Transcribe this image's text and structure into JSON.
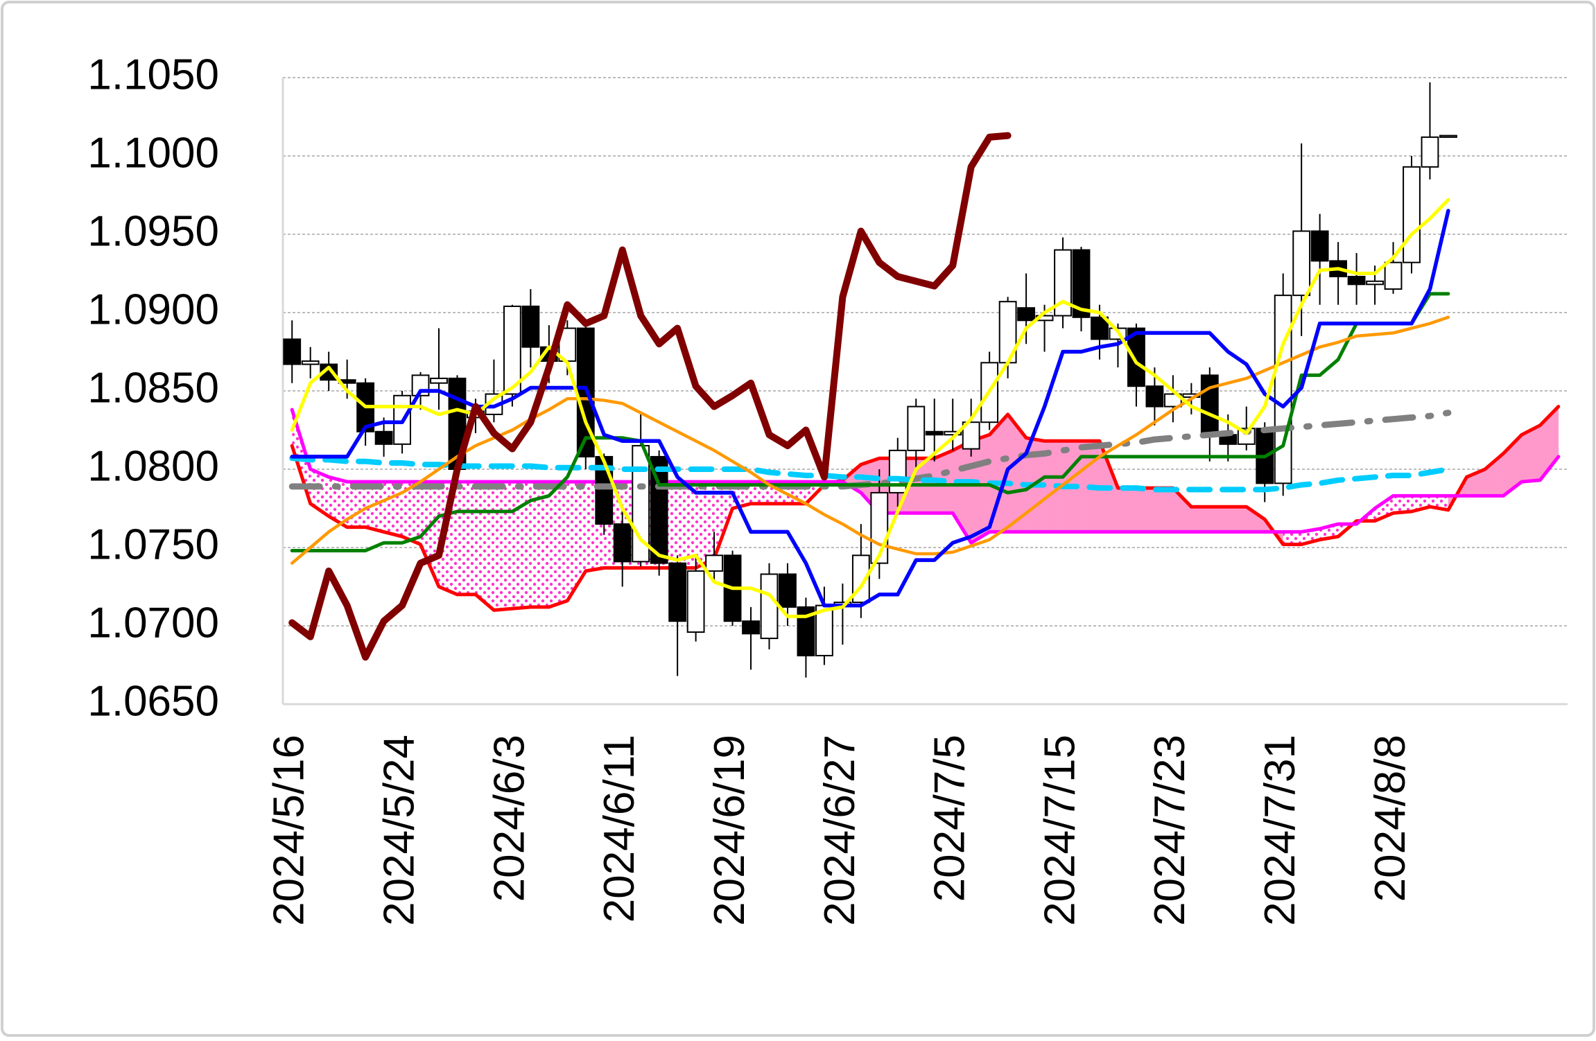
{
  "chart_data": {
    "type": "candlestick",
    "categories": [
      "2024/5/16",
      null,
      null,
      null,
      null,
      null,
      "2024/5/24",
      null,
      null,
      null,
      null,
      null,
      "2024/6/3",
      null,
      null,
      null,
      null,
      null,
      "2024/6/11",
      null,
      null,
      null,
      null,
      null,
      "2024/6/19",
      null,
      null,
      null,
      null,
      null,
      "2024/6/27",
      null,
      null,
      null,
      null,
      null,
      "2024/7/5",
      null,
      null,
      null,
      null,
      null,
      "2024/7/15",
      null,
      null,
      null,
      null,
      null,
      "2024/7/23",
      null,
      null,
      null,
      null,
      null,
      "2024/7/31",
      null,
      null,
      null,
      null,
      null,
      "2024/8/8",
      null,
      null,
      null,
      null,
      null,
      null,
      null,
      null,
      null
    ],
    "open": [
      1.0883,
      1.0867,
      1.0867,
      1.0857,
      1.0855,
      1.0824,
      1.0816,
      1.0847,
      1.0855,
      1.0858,
      1.0833,
      1.0835,
      1.0848,
      1.0904,
      1.0878,
      1.0869,
      1.089,
      1.0808,
      1.0765,
      1.0741,
      1.0808,
      1.074,
      1.0696,
      1.0735,
      1.0745,
      1.0703,
      1.0692,
      1.0733,
      1.0712,
      1.0681,
      1.0713,
      1.0715,
      1.074,
      1.0785,
      1.0812,
      1.0824,
      1.0822,
      1.0813,
      1.083,
      1.0868,
      1.0903,
      1.0895,
      1.0898,
      1.094,
      1.0897,
      1.0883,
      1.089,
      1.0853,
      1.084,
      1.0846,
      1.086,
      1.0822,
      1.0816,
      1.0826,
      1.0791,
      1.0911,
      1.0952,
      1.0933,
      1.0923,
      1.0918,
      1.0915,
      1.0932,
      1.0993,
      1.1012,
      null,
      null,
      null,
      null,
      null,
      null
    ],
    "high": [
      1.0895,
      1.0878,
      1.0875,
      1.087,
      1.0858,
      1.0833,
      1.085,
      1.0862,
      1.089,
      1.086,
      1.0845,
      1.087,
      1.0905,
      1.0915,
      1.0892,
      1.0895,
      1.0892,
      1.081,
      1.0775,
      1.0835,
      1.0812,
      1.0745,
      1.0745,
      1.076,
      1.0748,
      1.0712,
      1.074,
      1.074,
      1.0718,
      1.0725,
      1.0727,
      1.0765,
      1.08,
      1.082,
      1.0845,
      1.0845,
      1.0845,
      1.0845,
      1.0875,
      1.091,
      1.0925,
      1.0905,
      1.0948,
      1.0942,
      1.0905,
      1.0893,
      1.0893,
      1.0865,
      1.086,
      1.0855,
      1.0865,
      1.0835,
      1.084,
      1.083,
      1.0925,
      1.1008,
      1.0963,
      1.0945,
      1.0938,
      1.093,
      1.0945,
      1.1,
      1.1047,
      1.1013,
      null,
      null,
      null,
      null,
      null,
      null
    ],
    "low": [
      1.0855,
      1.0858,
      1.085,
      1.0845,
      1.0815,
      1.0808,
      1.081,
      1.0838,
      1.0838,
      1.0795,
      1.0823,
      1.083,
      1.084,
      1.0865,
      1.0855,
      1.086,
      1.08,
      1.0758,
      1.0725,
      1.0738,
      1.0732,
      1.0668,
      1.069,
      1.0728,
      1.07,
      1.0672,
      1.0685,
      1.07,
      1.0667,
      1.0675,
      1.0688,
      1.0705,
      1.073,
      1.0776,
      1.08,
      1.0805,
      1.0812,
      1.0808,
      1.0825,
      1.0858,
      1.088,
      1.0875,
      1.089,
      1.0888,
      1.087,
      1.0865,
      1.084,
      1.0828,
      1.083,
      1.0835,
      1.0805,
      1.0805,
      1.0812,
      1.0779,
      1.0783,
      1.0885,
      1.0905,
      1.0905,
      1.0905,
      1.0905,
      1.0912,
      1.0925,
      1.0985,
      1.1012,
      null,
      null,
      null,
      null,
      null,
      null
    ],
    "close": [
      1.0867,
      1.0869,
      1.0857,
      1.0855,
      1.0824,
      1.0816,
      1.0847,
      1.086,
      1.0858,
      1.08,
      1.0837,
      1.0848,
      1.0904,
      1.0878,
      1.0869,
      1.089,
      1.0808,
      1.0765,
      1.0741,
      1.0815,
      1.074,
      1.0703,
      1.0735,
      1.0745,
      1.0703,
      1.0695,
      1.0733,
      1.0712,
      1.0681,
      1.0713,
      1.0715,
      1.0745,
      1.0785,
      1.0812,
      1.084,
      1.0822,
      1.0824,
      1.083,
      1.0868,
      1.0907,
      1.0895,
      1.0898,
      1.094,
      1.0897,
      1.0883,
      1.089,
      1.0853,
      1.084,
      1.0848,
      1.0848,
      1.0822,
      1.0816,
      1.0826,
      1.0791,
      1.0911,
      1.0952,
      1.0933,
      1.0923,
      1.0918,
      1.092,
      1.0932,
      1.0993,
      1.1012,
      1.1013,
      null,
      null,
      null,
      null,
      null,
      null
    ],
    "series": [
      {
        "color": "#ff0000",
        "values": [
          1.0815,
          1.0778,
          1.077,
          1.0763,
          1.0763,
          1.076,
          1.0757,
          1.0752,
          1.0725,
          1.072,
          1.072,
          1.071,
          1.0711,
          1.0712,
          1.0712,
          1.0716,
          1.0735,
          1.0737,
          1.0737,
          1.0737,
          1.0737,
          1.0737,
          1.0737,
          1.0743,
          1.0775,
          1.0778,
          1.0778,
          1.0778,
          1.0778,
          1.079,
          1.0793,
          1.0803,
          1.0807,
          1.0807,
          1.0807,
          1.0807,
          1.0812,
          1.0818,
          1.0822,
          1.0835,
          1.082,
          1.0818,
          1.0818,
          1.0818,
          1.0818,
          1.0788,
          1.0788,
          1.0788,
          1.0788,
          1.0776,
          1.0776,
          1.0776,
          1.0776,
          1.0768,
          1.0752,
          1.0752,
          1.0755,
          1.0757,
          1.0767,
          1.0767,
          1.0772,
          1.0773,
          1.0776,
          1.0774,
          1.0795,
          1.08,
          1.081,
          1.0822,
          1.0828,
          1.084
        ]
      },
      {
        "color": "#ff00ff",
        "values": [
          1.0838,
          1.08,
          1.0795,
          1.0792,
          1.0792,
          1.0792,
          1.0792,
          1.0792,
          1.0792,
          1.0792,
          1.0792,
          1.0792,
          1.0792,
          1.0792,
          1.0792,
          1.0792,
          1.0792,
          1.0792,
          1.0792,
          1.0792,
          1.0792,
          1.0792,
          1.0792,
          1.0792,
          1.0792,
          1.0792,
          1.0792,
          1.0792,
          1.0792,
          1.0792,
          1.0792,
          1.0785,
          1.0772,
          1.0772,
          1.0772,
          1.0772,
          1.0772,
          1.0753,
          1.076,
          1.076,
          1.076,
          1.076,
          1.076,
          1.076,
          1.076,
          1.076,
          1.076,
          1.076,
          1.076,
          1.076,
          1.076,
          1.076,
          1.076,
          1.076,
          1.076,
          1.076,
          1.0762,
          1.0765,
          1.0765,
          1.0775,
          1.0783,
          1.0783,
          1.0783,
          1.0783,
          1.0783,
          1.0783,
          1.0783,
          1.0792,
          1.0793,
          1.0808
        ]
      },
      {
        "color": "#808080",
        "values": [
          1.0789,
          1.0789,
          1.0789,
          1.0789,
          1.0789,
          1.0789,
          1.0789,
          1.0789,
          1.0789,
          1.0789,
          1.0789,
          1.0789,
          1.0789,
          1.0789,
          1.0789,
          1.0789,
          1.0789,
          1.0789,
          1.0789,
          1.0789,
          1.0789,
          1.0789,
          1.0789,
          1.0789,
          1.0789,
          1.0789,
          1.0789,
          1.0789,
          1.0789,
          1.0789,
          1.0789,
          1.079,
          1.0791,
          1.0792,
          1.0794,
          1.0796,
          1.0799,
          1.0802,
          1.0805,
          1.0807,
          1.0809,
          1.081,
          1.0812,
          1.0814,
          1.0815,
          1.0816,
          1.0817,
          1.0819,
          1.082,
          1.0821,
          1.0822,
          1.0823,
          1.0824,
          1.0825,
          1.0826,
          1.0827,
          1.0828,
          1.0829,
          1.083,
          1.0831,
          1.0832,
          1.0833,
          1.0834,
          1.0836,
          null,
          null,
          null,
          null,
          null,
          null
        ]
      },
      {
        "color": "#00ccff",
        "values": [
          1.0807,
          1.0806,
          1.0806,
          1.0805,
          1.0805,
          1.0804,
          1.0804,
          1.0803,
          1.0803,
          1.0802,
          1.0802,
          1.0802,
          1.0802,
          1.0802,
          1.0801,
          1.0801,
          1.0801,
          1.0801,
          1.08,
          1.08,
          1.08,
          1.08,
          1.08,
          1.08,
          1.08,
          1.08,
          1.0798,
          1.0797,
          1.0796,
          1.0796,
          1.0795,
          1.0795,
          1.0794,
          1.0794,
          1.0793,
          1.0793,
          1.0792,
          1.0792,
          1.0791,
          1.0791,
          1.079,
          1.079,
          1.0789,
          1.0789,
          1.0788,
          1.0788,
          1.0788,
          1.0787,
          1.0787,
          1.0787,
          1.0787,
          1.0787,
          1.0787,
          1.0787,
          1.0788,
          1.079,
          1.0791,
          1.0793,
          1.0794,
          1.0795,
          1.0796,
          1.0796,
          1.0798,
          1.08,
          null,
          null,
          null,
          null,
          null,
          null
        ]
      },
      {
        "color": "#008000",
        "values": [
          1.0748,
          1.0748,
          1.0748,
          1.0748,
          1.0748,
          1.0753,
          1.0753,
          1.0757,
          1.077,
          1.0773,
          1.0773,
          1.0773,
          1.0773,
          1.078,
          1.0783,
          1.0795,
          1.082,
          1.082,
          1.082,
          1.0818,
          1.079,
          1.079,
          1.079,
          1.079,
          1.079,
          1.079,
          1.079,
          1.079,
          1.079,
          1.079,
          1.079,
          1.079,
          1.079,
          1.079,
          1.079,
          1.079,
          1.079,
          1.079,
          1.079,
          1.0785,
          1.0787,
          1.0795,
          1.0795,
          1.0808,
          1.0808,
          1.0808,
          1.0808,
          1.0808,
          1.0808,
          1.0808,
          1.0808,
          1.0808,
          1.0808,
          1.0808,
          1.0815,
          1.086,
          1.086,
          1.087,
          1.0893,
          1.0893,
          1.0893,
          1.0893,
          1.0912,
          1.0912,
          null,
          null,
          null,
          null,
          null,
          null
        ]
      },
      {
        "color": "#ff9900",
        "values": [
          1.074,
          1.075,
          1.076,
          1.0768,
          1.0775,
          1.078,
          1.0785,
          1.0792,
          1.08,
          1.0808,
          1.0815,
          1.082,
          1.0825,
          1.0832,
          1.0838,
          1.0845,
          1.0845,
          1.0844,
          1.0842,
          1.0836,
          1.083,
          1.0824,
          1.0818,
          1.0812,
          1.0805,
          1.0798,
          1.079,
          1.0784,
          1.0778,
          1.0771,
          1.0765,
          1.0758,
          1.0752,
          1.0749,
          1.0746,
          1.0746,
          1.0747,
          1.0751,
          1.0755,
          1.0763,
          1.0772,
          1.0781,
          1.079,
          1.0799,
          1.0808,
          1.0815,
          1.0822,
          1.083,
          1.0838,
          1.0845,
          1.0852,
          1.0855,
          1.0858,
          1.0863,
          1.0868,
          1.0873,
          1.0878,
          1.0881,
          1.0885,
          1.0886,
          1.0887,
          1.089,
          1.0893,
          1.0897,
          null,
          null,
          null,
          null,
          null,
          null
        ]
      },
      {
        "color": "#0000ff",
        "values": [
          1.0808,
          1.0808,
          1.0808,
          1.0808,
          1.0827,
          1.083,
          1.083,
          1.085,
          1.085,
          1.0845,
          1.084,
          1.084,
          1.0845,
          1.0852,
          1.0852,
          1.0852,
          1.0852,
          1.0822,
          1.0818,
          1.0818,
          1.0818,
          1.0795,
          1.0785,
          1.0785,
          1.0785,
          1.076,
          1.076,
          1.076,
          1.074,
          1.0713,
          1.0713,
          1.0713,
          1.072,
          1.072,
          1.0742,
          1.0742,
          1.0753,
          1.0757,
          1.0763,
          1.08,
          1.081,
          1.084,
          1.0875,
          1.0875,
          1.0878,
          1.088,
          1.0887,
          1.0887,
          1.0887,
          1.0887,
          1.0887,
          1.0875,
          1.0867,
          1.0848,
          1.084,
          1.0852,
          1.0893,
          1.0893,
          1.0893,
          1.0893,
          1.0893,
          1.0893,
          1.0915,
          1.0965,
          null,
          null,
          null,
          null,
          null,
          null
        ]
      },
      {
        "color": "#ffff00",
        "values": [
          1.0825,
          1.0855,
          1.0865,
          1.085,
          1.084,
          1.084,
          1.084,
          1.084,
          1.0835,
          1.0838,
          1.0835,
          1.0845,
          1.0852,
          1.0862,
          1.0878,
          1.0868,
          1.083,
          1.0805,
          1.0775,
          1.0755,
          1.0745,
          1.0742,
          1.0745,
          1.0728,
          1.0724,
          1.0724,
          1.072,
          1.0706,
          1.0706,
          1.071,
          1.0712,
          1.0725,
          1.0745,
          1.0773,
          1.08,
          1.081,
          1.082,
          1.0832,
          1.085,
          1.0868,
          1.089,
          1.09,
          1.0907,
          1.0902,
          1.09,
          1.0888,
          1.0868,
          1.086,
          1.085,
          1.084,
          1.0835,
          1.083,
          1.0823,
          1.084,
          1.088,
          1.0905,
          1.0927,
          1.0928,
          1.0925,
          1.0925,
          1.0935,
          1.095,
          1.096,
          1.0972,
          null,
          null,
          null,
          null,
          null,
          null
        ]
      },
      {
        "color": "#800000",
        "values": [
          1.0702,
          1.0693,
          1.0735,
          1.0713,
          1.068,
          1.0703,
          1.0713,
          1.074,
          1.0745,
          1.08,
          1.084,
          1.0823,
          1.0813,
          1.083,
          1.0865,
          1.0905,
          1.0893,
          1.0898,
          1.094,
          1.0898,
          1.088,
          1.089,
          1.0853,
          1.084,
          1.0847,
          1.0855,
          1.0822,
          1.0815,
          1.0825,
          1.0795,
          1.091,
          1.0952,
          1.0932,
          1.0923,
          1.092,
          1.0917,
          1.093,
          1.0993,
          1.1012,
          1.1013,
          null,
          null,
          null,
          null,
          null,
          null,
          null,
          null,
          null,
          null,
          null,
          null,
          null,
          null,
          null,
          null,
          null,
          null,
          null,
          null,
          null,
          null,
          null,
          null,
          null,
          null,
          null,
          null,
          null,
          null
        ]
      }
    ],
    "ylim": [
      1.065,
      1.105
    ],
    "yticks": [
      {
        "value": 1.065,
        "label": "1.0650"
      },
      {
        "value": 1.07,
        "label": "1.0700"
      },
      {
        "value": 1.075,
        "label": "1.0750"
      },
      {
        "value": 1.08,
        "label": "1.0800"
      },
      {
        "value": 1.085,
        "label": "1.0850"
      },
      {
        "value": 1.09,
        "label": "1.0900"
      },
      {
        "value": 1.095,
        "label": "1.0950"
      },
      {
        "value": 1.1,
        "label": "1.1000"
      },
      {
        "value": 1.105,
        "label": "1.1050"
      }
    ],
    "grid": true
  }
}
